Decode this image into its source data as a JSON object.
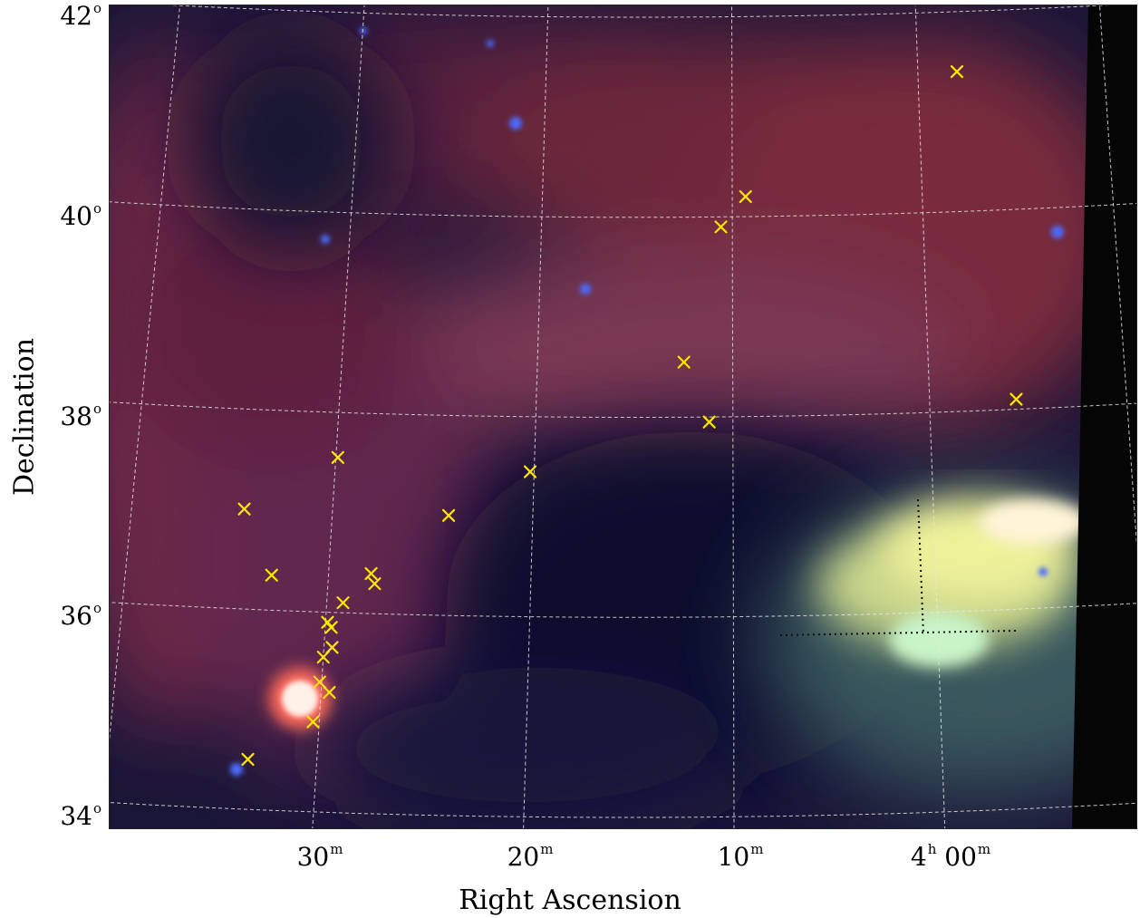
{
  "chart_data": {
    "type": "scatter",
    "image_type": "false-color infrared sky map with coordinate grid",
    "xlabel": "Right Ascension",
    "ylabel": "Declination",
    "x_axis": {
      "units": "RA (hours/minutes)",
      "direction": "decreasing to the right",
      "ticks": [
        {
          "main": "30",
          "sup": "m"
        },
        {
          "main": "20",
          "sup": "m"
        },
        {
          "main": "10",
          "sup": "m"
        },
        {
          "main": "4",
          "sup": "h",
          "main2": "00",
          "sup2": "m"
        }
      ]
    },
    "y_axis": {
      "units": "Dec (degrees)",
      "ticks": [
        {
          "main": "42",
          "sup": "o"
        },
        {
          "main": "40",
          "sup": "o"
        },
        {
          "main": "38",
          "sup": "o"
        },
        {
          "main": "36",
          "sup": "o"
        },
        {
          "main": "34",
          "sup": "o"
        }
      ]
    },
    "grid": true,
    "grid_style": "dashed white",
    "colors": {
      "marker": "#ffe600",
      "background_dark": "#151232",
      "emission_red": "#b4384c",
      "emission_yellow_green": "#e8f08a",
      "point_source_blue": "#3c5aff"
    },
    "series": [
      {
        "marker": "x",
        "color": "#ffe600",
        "points": [
          {
            "ra": "04h34.4m",
            "dec": 37.0
          },
          {
            "ra": "04h32.8m",
            "dec": 36.35
          },
          {
            "ra": "04h33.3m",
            "dec": 34.5
          },
          {
            "ra": "04h29.9m",
            "dec": 37.55
          },
          {
            "ra": "04h27.9m",
            "dec": 36.4
          },
          {
            "ra": "04h27.7m",
            "dec": 36.3
          },
          {
            "ra": "04h29.2m",
            "dec": 36.1
          },
          {
            "ra": "04h29.9m",
            "dec": 35.9
          },
          {
            "ra": "04h29.7m",
            "dec": 35.85
          },
          {
            "ra": "04h29.6m",
            "dec": 35.65
          },
          {
            "ra": "04h30.0m",
            "dec": 35.55
          },
          {
            "ra": "04h30.1m",
            "dec": 35.3
          },
          {
            "ra": "04h29.6m",
            "dec": 35.2
          },
          {
            "ra": "04h30.3m",
            "dec": 34.9
          },
          {
            "ra": "04h24.2m",
            "dec": 37.0
          },
          {
            "ra": "04h20.2m",
            "dec": 37.45
          },
          {
            "ra": "04h12.5m",
            "dec": 38.55
          },
          {
            "ra": "04h11.2m",
            "dec": 37.95
          },
          {
            "ra": "04h10.6m",
            "dec": 39.9
          },
          {
            "ra": "04h09.3m",
            "dec": 40.2
          },
          {
            "ra": "03h57.9m",
            "dec": 41.4
          },
          {
            "ra": "03h55.6m",
            "dec": 38.1
          }
        ]
      }
    ]
  }
}
